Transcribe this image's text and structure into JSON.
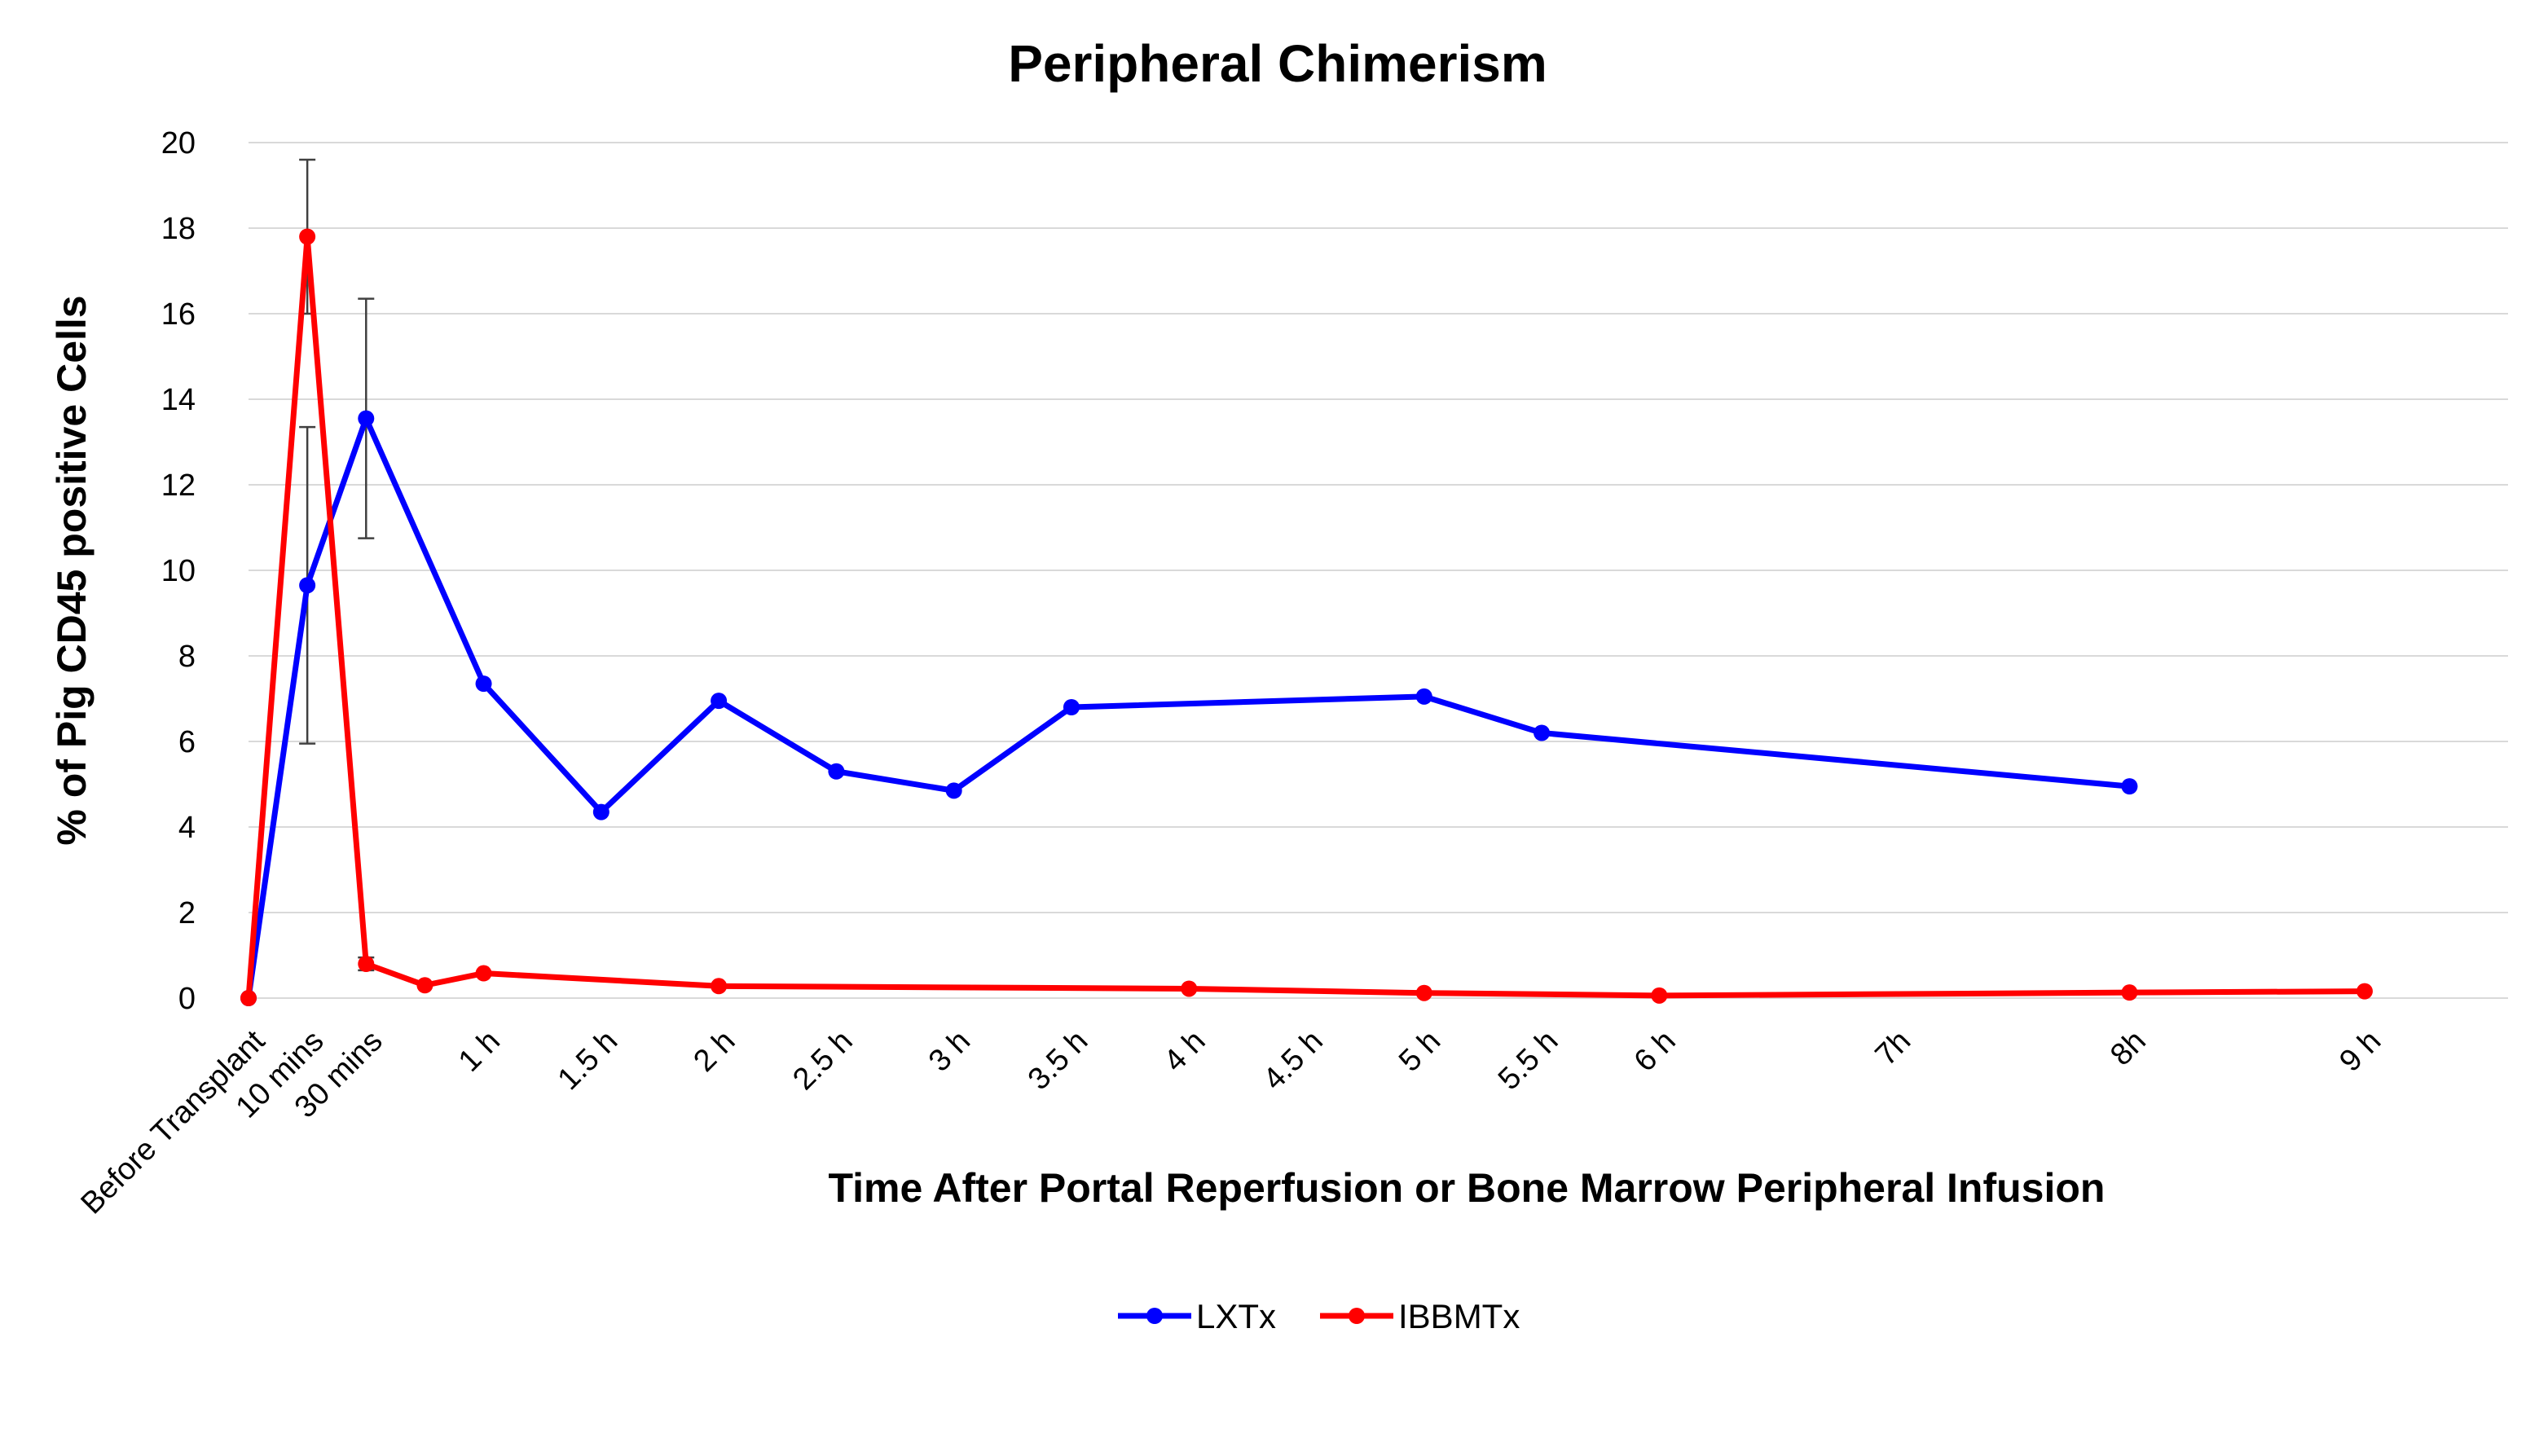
{
  "chart_data": {
    "type": "line",
    "title": "Peripheral Chimerism",
    "xlabel": "Time After Portal Reperfusion or Bone Marrow Peripheral Infusion",
    "ylabel": "% of Pig CD45 positive Cells",
    "ylim": [
      0,
      20
    ],
    "yticks": [
      "0",
      "2",
      "4",
      "6",
      "8",
      "10",
      "12",
      "14",
      "16",
      "18",
      "20"
    ],
    "grid": true,
    "legend_position": "bottom",
    "categories": [
      "Before Transplant",
      "10 mins",
      "30 mins",
      "",
      "1 h",
      "",
      "1.5 h",
      "",
      "2 h",
      "",
      "2.5 h",
      "",
      "3 h",
      "",
      "3.5 h",
      "",
      "4 h",
      "",
      "4.5 h",
      "",
      "5 h",
      "",
      "5.5 h",
      "",
      "6 h",
      "",
      "",
      "",
      "7h",
      "",
      "",
      "",
      "8h",
      "",
      "",
      "",
      "9 h"
    ],
    "series": [
      {
        "name": "LXTx",
        "color": "#0000ff",
        "points": [
          {
            "i": 0,
            "y": 0
          },
          {
            "i": 1,
            "y": 9.65,
            "err": 3.7
          },
          {
            "i": 2,
            "y": 13.55,
            "err": 2.8
          },
          {
            "i": 4,
            "y": 7.35
          },
          {
            "i": 6,
            "y": 4.35
          },
          {
            "i": 8,
            "y": 6.95
          },
          {
            "i": 10,
            "y": 5.3
          },
          {
            "i": 12,
            "y": 4.85
          },
          {
            "i": 14,
            "y": 6.8
          },
          {
            "i": 20,
            "y": 7.05
          },
          {
            "i": 22,
            "y": 6.2
          },
          {
            "i": 32,
            "y": 4.95
          }
        ]
      },
      {
        "name": "IBBMTx",
        "color": "#ff0000",
        "points": [
          {
            "i": 0,
            "y": 0
          },
          {
            "i": 1,
            "y": 17.8,
            "err": 1.8
          },
          {
            "i": 2,
            "y": 0.8,
            "err": 0.15
          },
          {
            "i": 3,
            "y": 0.3
          },
          {
            "i": 4,
            "y": 0.58
          },
          {
            "i": 8,
            "y": 0.28
          },
          {
            "i": 16,
            "y": 0.22
          },
          {
            "i": 20,
            "y": 0.12
          },
          {
            "i": 24,
            "y": 0.06
          },
          {
            "i": 32,
            "y": 0.13
          },
          {
            "i": 36,
            "y": 0.16
          }
        ]
      }
    ]
  }
}
